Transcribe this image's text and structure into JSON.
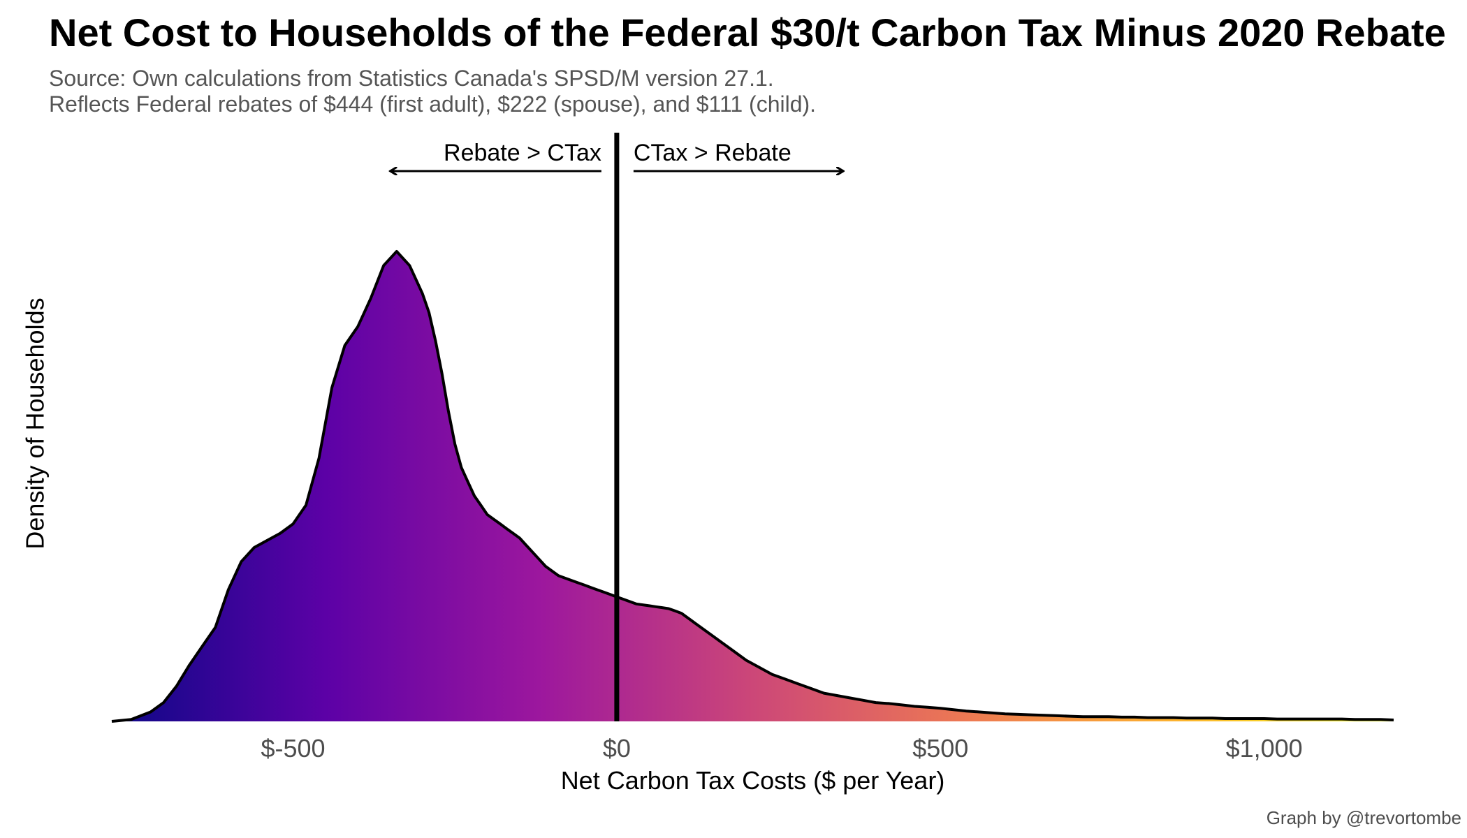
{
  "chart_data": {
    "type": "area",
    "title": "Net Cost to Households of the Federal $30/t Carbon Tax Minus 2020 Rebate",
    "subtitle": [
      "Source: Own calculations from Statistics Canada's SPSD/M version 27.1.",
      "Reflects Federal rebates of $444 (first adult), $222 (spouse), and $111 (child)."
    ],
    "caption": "Graph by @trevortombe",
    "xlabel": "Net Carbon Tax Costs ($ per Year)",
    "ylabel": "Density of Households",
    "xlim": [
      -780,
      1200
    ],
    "ylim": [
      0,
      1.2
    ],
    "x_ticks": [
      -500,
      0,
      500,
      1000
    ],
    "x_tick_labels": [
      "$-500",
      "$0",
      "$500",
      "$1,000"
    ],
    "grid": false,
    "vline_x": 0,
    "annotations": [
      {
        "text": "Rebate > CTax",
        "side": "left",
        "arrow_to_x": -350
      },
      {
        "text": "CTax > Rebate",
        "side": "right",
        "arrow_to_x": 350
      }
    ],
    "fill_colors": [
      "#0d0887",
      "#5c01a6",
      "#9c179e",
      "#cc4778",
      "#ed7953",
      "#fdb42f",
      "#f0f921"
    ],
    "density": {
      "x": [
        -780,
        -750,
        -720,
        -700,
        -680,
        -660,
        -640,
        -620,
        -600,
        -580,
        -560,
        -540,
        -520,
        -500,
        -480,
        -460,
        -440,
        -420,
        -400,
        -380,
        -360,
        -340,
        -320,
        -300,
        -290,
        -280,
        -270,
        -260,
        -250,
        -240,
        -230,
        -220,
        -210,
        -200,
        -190,
        -180,
        -170,
        -160,
        -150,
        -140,
        -130,
        -120,
        -110,
        -100,
        -90,
        -80,
        -70,
        -60,
        -50,
        -40,
        -30,
        -20,
        -10,
        0,
        10,
        20,
        30,
        40,
        50,
        60,
        70,
        80,
        90,
        100,
        120,
        140,
        160,
        180,
        200,
        220,
        240,
        260,
        280,
        300,
        320,
        340,
        360,
        380,
        400,
        420,
        440,
        460,
        480,
        500,
        520,
        540,
        560,
        580,
        600,
        620,
        640,
        660,
        680,
        700,
        720,
        740,
        760,
        780,
        800,
        820,
        840,
        860,
        880,
        900,
        920,
        940,
        960,
        980,
        1000,
        1020,
        1040,
        1060,
        1080,
        1100,
        1120,
        1140,
        1160,
        1180,
        1200
      ],
      "y": [
        0.0,
        0.004,
        0.02,
        0.04,
        0.075,
        0.12,
        0.16,
        0.2,
        0.28,
        0.34,
        0.37,
        0.385,
        0.4,
        0.42,
        0.46,
        0.56,
        0.71,
        0.8,
        0.84,
        0.9,
        0.97,
        1.0,
        0.97,
        0.91,
        0.87,
        0.81,
        0.74,
        0.66,
        0.59,
        0.54,
        0.51,
        0.48,
        0.46,
        0.44,
        0.43,
        0.42,
        0.41,
        0.4,
        0.39,
        0.375,
        0.36,
        0.345,
        0.33,
        0.32,
        0.31,
        0.305,
        0.3,
        0.295,
        0.29,
        0.285,
        0.28,
        0.275,
        0.27,
        0.265,
        0.26,
        0.255,
        0.25,
        0.248,
        0.246,
        0.244,
        0.242,
        0.24,
        0.235,
        0.23,
        0.21,
        0.19,
        0.17,
        0.15,
        0.13,
        0.115,
        0.1,
        0.09,
        0.08,
        0.07,
        0.06,
        0.055,
        0.05,
        0.045,
        0.04,
        0.038,
        0.035,
        0.032,
        0.03,
        0.028,
        0.025,
        0.022,
        0.02,
        0.018,
        0.016,
        0.015,
        0.014,
        0.013,
        0.012,
        0.011,
        0.01,
        0.01,
        0.01,
        0.009,
        0.009,
        0.008,
        0.008,
        0.008,
        0.007,
        0.007,
        0.007,
        0.006,
        0.006,
        0.006,
        0.006,
        0.005,
        0.005,
        0.005,
        0.005,
        0.005,
        0.005,
        0.004,
        0.004,
        0.004,
        0.003
      ]
    }
  }
}
